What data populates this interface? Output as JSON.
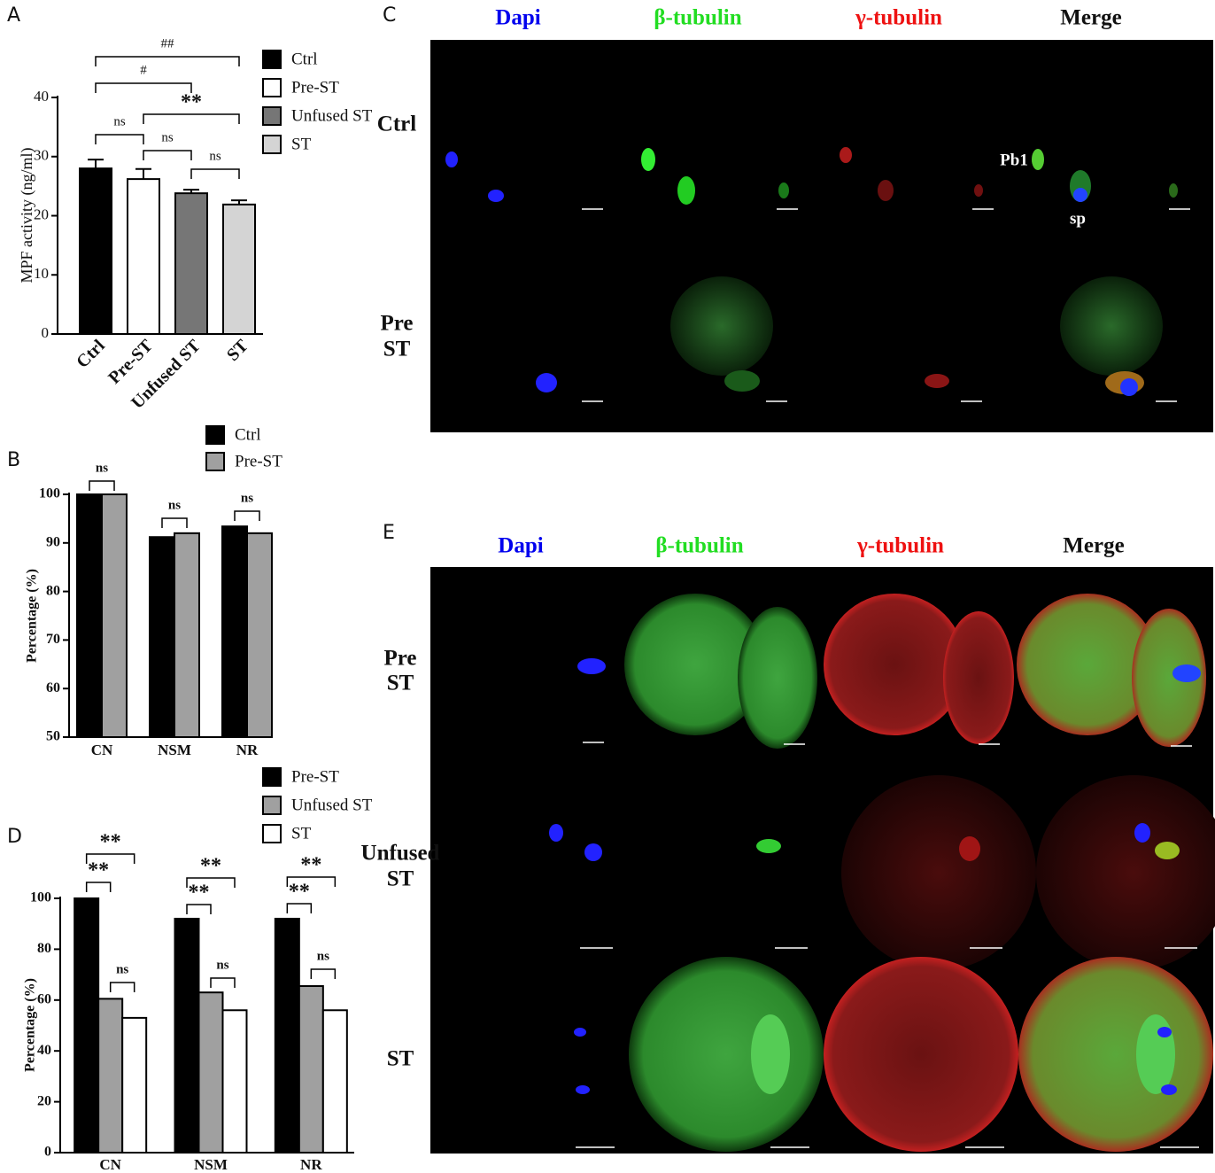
{
  "chart_data": [
    {
      "type": "bar",
      "panel": "A",
      "y_label": "MPF activity (ng/ml)",
      "categories": [
        "Ctrl",
        "Pre-ST",
        "Unfused ST",
        "ST"
      ],
      "values": [
        28,
        26.2,
        23.8,
        21.9
      ],
      "errors": [
        1.5,
        1.7,
        0.6,
        0.7
      ],
      "colors": [
        "#000000",
        "#ffffff",
        "#767676",
        "#d4d4d4"
      ],
      "ylim": [
        0,
        40
      ],
      "yticks": [
        0,
        10,
        20,
        30,
        40
      ],
      "annotations": [
        {
          "text": "ns",
          "between": [
            0,
            1
          ]
        },
        {
          "text": "ns",
          "between": [
            1,
            2
          ]
        },
        {
          "text": "ns",
          "between": [
            2,
            3
          ]
        },
        {
          "text": "**",
          "between": [
            1,
            3
          ]
        },
        {
          "text": "#",
          "between": [
            0,
            2
          ]
        },
        {
          "text": "##",
          "between": [
            0,
            3
          ]
        }
      ]
    },
    {
      "type": "bar",
      "panel": "B",
      "y_label": "Percentage (%)",
      "categories": [
        "CN",
        "NSM",
        "NR"
      ],
      "series": [
        {
          "name": "Ctrl",
          "color": "#000000",
          "values": [
            100,
            91.2,
            93.4
          ]
        },
        {
          "name": "Pre-ST",
          "color": "#a0a0a0",
          "values": [
            100,
            92,
            92
          ]
        }
      ],
      "ylim": [
        50,
        100
      ],
      "yticks": [
        50,
        60,
        70,
        80,
        90,
        100
      ],
      "annotations": [
        {
          "text": "ns",
          "category": 0,
          "between": [
            0,
            1
          ]
        },
        {
          "text": "ns",
          "category": 1,
          "between": [
            0,
            1
          ]
        },
        {
          "text": "ns",
          "category": 2,
          "between": [
            0,
            1
          ]
        }
      ]
    },
    {
      "type": "bar",
      "panel": "D",
      "y_label": "Percentage (%)",
      "categories": [
        "CN",
        "NSM",
        "NR"
      ],
      "series": [
        {
          "name": "Pre-ST",
          "color": "#000000",
          "values": [
            100,
            92,
            92
          ]
        },
        {
          "name": "Unfused ST",
          "color": "#a0a0a0",
          "values": [
            60.5,
            63,
            65.5
          ]
        },
        {
          "name": "ST",
          "color": "#ffffff",
          "values": [
            53,
            56,
            56
          ]
        }
      ],
      "ylim": [
        0,
        100
      ],
      "yticks": [
        0,
        20,
        40,
        60,
        80,
        100
      ],
      "annotations": [
        {
          "text": "**",
          "category": 0,
          "between": [
            0,
            1
          ]
        },
        {
          "text": "**",
          "category": 0,
          "between": [
            0,
            2
          ]
        },
        {
          "text": "ns",
          "category": 0,
          "between": [
            1,
            2
          ]
        },
        {
          "text": "**",
          "category": 1,
          "between": [
            0,
            1
          ]
        },
        {
          "text": "**",
          "category": 1,
          "between": [
            0,
            2
          ]
        },
        {
          "text": "ns",
          "category": 1,
          "between": [
            1,
            2
          ]
        },
        {
          "text": "**",
          "category": 2,
          "between": [
            0,
            1
          ]
        },
        {
          "text": "**",
          "category": 2,
          "between": [
            0,
            2
          ]
        },
        {
          "text": "ns",
          "category": 2,
          "between": [
            1,
            2
          ]
        }
      ]
    }
  ],
  "image_panels": [
    {
      "panel": "C",
      "columns": [
        "Dapi",
        "β-tubulin",
        "γ-tubulin",
        "Merge"
      ],
      "column_colors": [
        "#0000ee",
        "#22dd22",
        "#ee1111",
        "#111111"
      ],
      "rows": [
        [
          "Ctrl"
        ],
        [
          "Pre",
          "ST"
        ]
      ],
      "markers": [
        "Pb1",
        "sp"
      ]
    },
    {
      "panel": "E",
      "columns": [
        "Dapi",
        "β-tubulin",
        "γ-tubulin",
        "Merge"
      ],
      "column_colors": [
        "#0000ee",
        "#22dd22",
        "#ee1111",
        "#111111"
      ],
      "rows": [
        [
          "Pre",
          "ST"
        ],
        [
          "Unfused",
          "ST"
        ],
        [
          "ST"
        ]
      ]
    }
  ]
}
